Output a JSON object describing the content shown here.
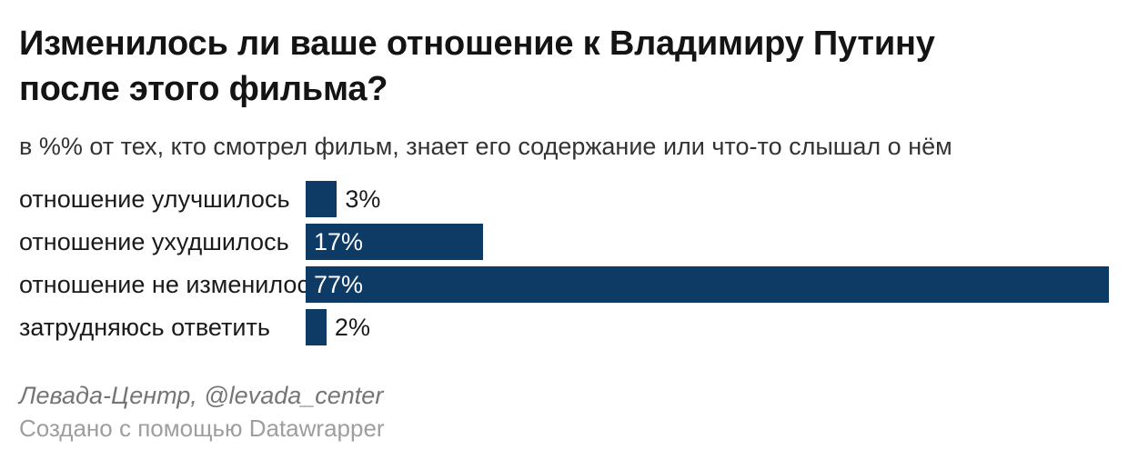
{
  "header": {
    "title_line1": "Изменилось ли ваше отношение к Владимиру Путину",
    "title_line2": "после этого фильма?",
    "subtitle": "в %% от тех, кто смотрел фильм, знает его содержание или что-то слышал о нём"
  },
  "footer": {
    "source": "Левада-Центр, @levada_center",
    "attribution": "Создано с помощью Datawrapper"
  },
  "colors": {
    "bar": "#0e3a66",
    "value_label_inside": "#ffffff",
    "value_label_outside": "#1a1a1a"
  },
  "chart_data": {
    "type": "bar",
    "orientation": "horizontal",
    "title": "Изменилось ли ваше отношение к Владимиру Путину после этого фильма?",
    "subtitle": "в %% от тех, кто смотрел фильм, знает его содержание или что-то слышал о нём",
    "categories": [
      "отношение улучшилось",
      "отношение ухудшилось",
      "отношение не изменилось",
      "затрудняюсь ответить"
    ],
    "values": [
      3,
      17,
      77,
      2
    ],
    "value_labels": [
      "3%",
      "17%",
      "77%",
      "2%"
    ],
    "label_inside": [
      false,
      true,
      true,
      false
    ],
    "unit": "%",
    "xlabel": "",
    "ylabel": "",
    "xlim": [
      0,
      77
    ],
    "grid": false,
    "legend": false,
    "bar_color": "#0e3a66"
  }
}
